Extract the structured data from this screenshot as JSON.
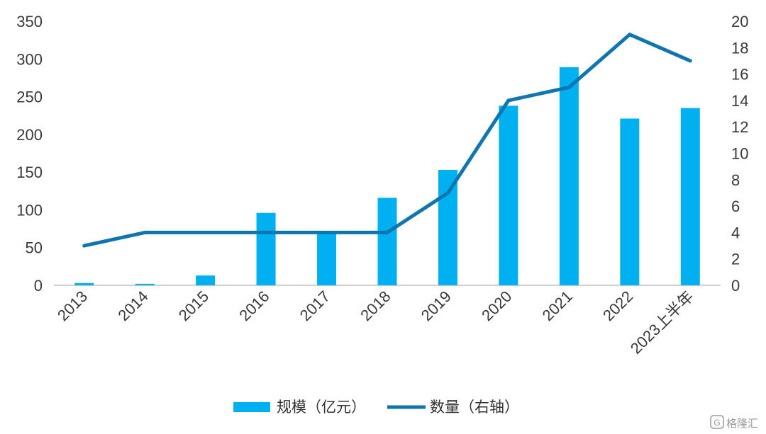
{
  "chart_data": {
    "type": "bar+line",
    "categories": [
      "2013",
      "2014",
      "2015",
      "2016",
      "2017",
      "2018",
      "2019",
      "2020",
      "2021",
      "2022",
      "2023上半年"
    ],
    "series": [
      {
        "name": "规模（亿元）",
        "type": "bar",
        "axis": "left",
        "values": [
          3,
          2,
          13,
          96,
          72,
          116,
          153,
          238,
          289,
          221,
          235
        ]
      },
      {
        "name": "数量（右轴）",
        "type": "line",
        "axis": "right",
        "values": [
          3,
          4,
          4,
          4,
          4,
          4,
          7,
          14,
          15,
          19,
          17
        ]
      }
    ],
    "y_left": {
      "min": 0,
      "max": 350,
      "ticks": [
        0,
        50,
        100,
        150,
        200,
        250,
        300,
        350
      ]
    },
    "y_right": {
      "min": 0,
      "max": 20,
      "ticks": [
        0,
        2,
        4,
        6,
        8,
        10,
        12,
        14,
        16,
        18,
        20
      ]
    },
    "grid": false,
    "legend_position": "bottom",
    "colors": {
      "bar": "#00b0f0",
      "line": "#0f75b0",
      "axis": "#bfbfbf",
      "text": "#3a3a3a"
    }
  },
  "watermark": {
    "text": "格隆汇",
    "icon": "gelonghui-logo-icon"
  }
}
